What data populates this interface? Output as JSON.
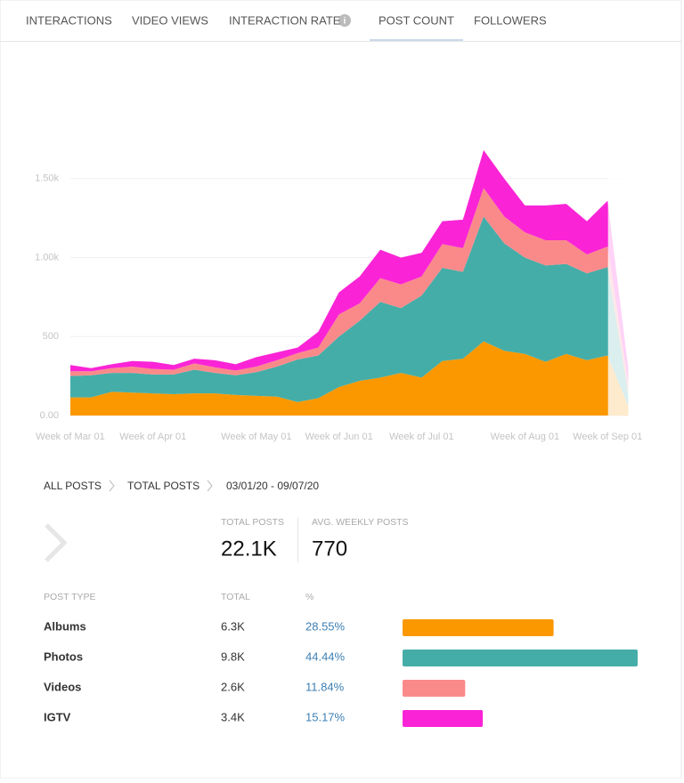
{
  "tabs": [
    "INTERACTIONS",
    "VIDEO VIEWS",
    "INTERACTION RATE",
    "POST COUNT",
    "FOLLOWERS"
  ],
  "active_tab": 3,
  "chart_data": {
    "type": "area",
    "stacked": true,
    "categories": [
      "Week of Mar 01",
      null,
      null,
      null,
      "Week of Apr 01",
      null,
      null,
      null,
      null,
      "Week of May 01",
      null,
      null,
      null,
      "Week of Jun 01",
      null,
      null,
      null,
      "Week of Jul 01",
      null,
      null,
      null,
      null,
      "Week of Aug 01",
      null,
      null,
      null,
      "Week of Sep 01",
      null
    ],
    "series": [
      {
        "name": "Albums",
        "color": "#fb9800",
        "values": [
          115,
          115,
          150,
          145,
          140,
          135,
          140,
          140,
          130,
          125,
          120,
          85,
          110,
          180,
          220,
          240,
          270,
          240,
          345,
          360,
          470,
          410,
          390,
          340,
          390,
          350,
          380,
          60
        ]
      },
      {
        "name": "Photos",
        "color": "#45ada8",
        "values": [
          135,
          140,
          120,
          125,
          120,
          125,
          150,
          130,
          125,
          150,
          190,
          270,
          270,
          320,
          380,
          480,
          410,
          520,
          590,
          550,
          790,
          680,
          610,
          610,
          570,
          550,
          560,
          80
        ]
      },
      {
        "name": "Videos",
        "color": "#fa8a8a",
        "values": [
          30,
          25,
          30,
          40,
          35,
          30,
          40,
          35,
          30,
          35,
          40,
          40,
          50,
          140,
          110,
          150,
          150,
          120,
          150,
          150,
          180,
          170,
          160,
          160,
          150,
          120,
          130,
          60
        ]
      },
      {
        "name": "IGTV",
        "color": "#fa24d6",
        "values": [
          40,
          20,
          25,
          35,
          45,
          30,
          30,
          45,
          40,
          60,
          50,
          35,
          100,
          140,
          170,
          180,
          170,
          150,
          145,
          180,
          240,
          240,
          170,
          220,
          230,
          210,
          290,
          100
        ]
      }
    ],
    "ylim": [
      0,
      2000
    ],
    "yticks": [
      {
        "value": 0,
        "label": "0.00"
      },
      500,
      {
        "value": 1000,
        "label": "1.00k"
      },
      {
        "value": 1500,
        "label": "1.50k"
      }
    ],
    "grid": true
  },
  "breadcrumb": [
    "ALL POSTS",
    "TOTAL POSTS",
    "03/01/20 - 09/07/20"
  ],
  "summary": [
    {
      "label": "TOTAL POSTS",
      "value": "22.1K"
    },
    {
      "label": "AVG. WEEKLY POSTS",
      "value": "770"
    }
  ],
  "table": {
    "headers": [
      "POST TYPE",
      "TOTAL",
      "%"
    ],
    "rows": [
      {
        "total": "6.3K",
        "percent": {
          "value": 28.55,
          "label": "28.55%"
        }
      },
      {
        "total": "9.8K",
        "percent": {
          "value": 44.44,
          "label": "44.44%"
        }
      },
      {
        "total": "2.6K",
        "percent": {
          "value": 11.84,
          "label": "11.84%"
        }
      },
      {
        "total": "3.4K",
        "percent": {
          "value": 15.17,
          "label": "15.17%"
        }
      }
    ]
  }
}
